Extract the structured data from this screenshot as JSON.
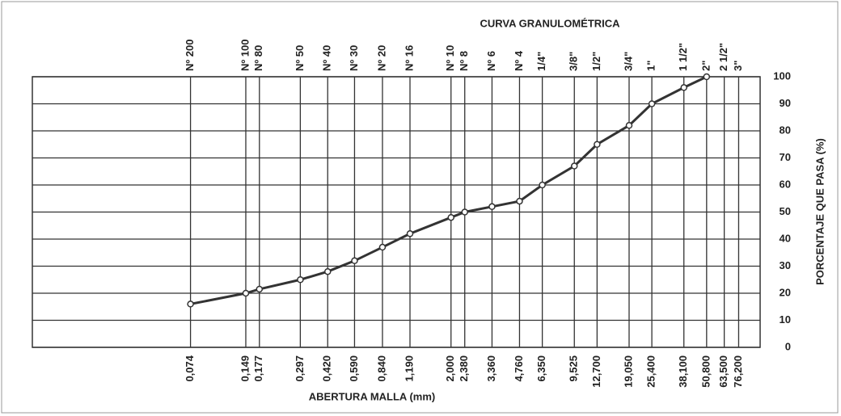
{
  "chart_data": {
    "type": "line",
    "title": "CURVA GRANULOMÉTRICA",
    "xlabel": "ABERTURA MALLA (mm)",
    "ylabel": "PORCENTAJE QUE PASA (%)",
    "xscale": "log",
    "xlim": [
      0.01,
      100
    ],
    "ylim": [
      0,
      100
    ],
    "yticks": [
      0,
      10,
      20,
      30,
      40,
      50,
      60,
      70,
      80,
      90,
      100
    ],
    "xticks": [
      {
        "value": 0.074,
        "label": "0,074"
      },
      {
        "value": 0.149,
        "label": "0,149"
      },
      {
        "value": 0.177,
        "label": "0,177"
      },
      {
        "value": 0.297,
        "label": "0,297"
      },
      {
        "value": 0.42,
        "label": "0,420"
      },
      {
        "value": 0.59,
        "label": "0,590"
      },
      {
        "value": 0.84,
        "label": "0,840"
      },
      {
        "value": 1.19,
        "label": "1,190"
      },
      {
        "value": 2,
        "label": "2,000"
      },
      {
        "value": 2.38,
        "label": "2,380"
      },
      {
        "value": 3.36,
        "label": "3,360"
      },
      {
        "value": 4.76,
        "label": "4,760"
      },
      {
        "value": 6.35,
        "label": "6,350"
      },
      {
        "value": 9.525,
        "label": "9,525"
      },
      {
        "value": 12.7,
        "label": "12,700"
      },
      {
        "value": 19.05,
        "label": "19,050"
      },
      {
        "value": 25.4,
        "label": "25,400"
      },
      {
        "value": 38.1,
        "label": "38,100"
      },
      {
        "value": 50.8,
        "label": "50,800"
      },
      {
        "value": 63.5,
        "label": "63,500"
      },
      {
        "value": 76.2,
        "label": "76,200"
      }
    ],
    "xtick_top_labels": [
      "Nº 200",
      "Nº 100",
      "Nº 80",
      "Nº 50",
      "Nº 40",
      "Nº 30",
      "Nº 20",
      "Nº 16",
      "Nº 10",
      "Nº 8",
      "Nº 6",
      "Nº 4",
      "1/4\"",
      "3/8\"",
      "1/2\"",
      "3/4\"",
      "1\"",
      "1 1/2\"",
      "2\"",
      "2 1/2\"",
      "3\""
    ],
    "grid": true,
    "series": [
      {
        "name": "Curva",
        "color": "#333333",
        "x": [
          0.074,
          0.149,
          0.177,
          0.297,
          0.42,
          0.59,
          0.84,
          1.19,
          2,
          2.38,
          3.36,
          4.76,
          6.35,
          9.525,
          12.7,
          19.05,
          25.4,
          38.1,
          50.8
        ],
        "values": [
          16,
          20,
          21.5,
          25,
          28,
          32,
          37,
          42,
          48,
          50,
          52,
          54,
          60,
          67,
          75,
          82,
          90,
          96,
          100
        ]
      }
    ]
  }
}
